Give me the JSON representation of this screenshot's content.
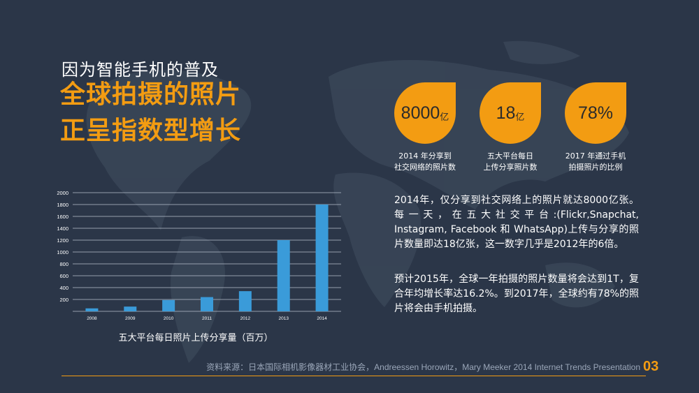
{
  "header": {
    "subtitle": "因为智能手机的普及",
    "headline_line1": "全球拍摄的照片",
    "headline_line2": "正呈指数型增长"
  },
  "stats": [
    {
      "value": "8000",
      "unit": "亿",
      "caption_line1": "2014 年分享到",
      "caption_line2": "社交网络的照片数"
    },
    {
      "value": "18",
      "unit": "亿",
      "caption_line1": "五大平台每日",
      "caption_line2": "上传分享照片数"
    },
    {
      "value": "78%",
      "unit": "",
      "caption_line1": "2017 年通过手机",
      "caption_line2": "拍摄照片的比例"
    }
  ],
  "paragraphs": {
    "p1": "2014年，仅分享到社交网络上的照片就达8000亿张。每一天，在五大社交平台:(Flickr,Snapchat, Instagram, Facebook 和 WhatsApp)上传与分享的照片数量即达18亿张，这一数字几乎是2012年的6倍。",
    "p2": "预计2015年，全球一年拍摄的照片数量将会达到1T，复合年均增长率达16.2%。到2017年，全球约有78%的照片将会由手机拍摄。"
  },
  "chart_data": {
    "type": "bar",
    "title": "五大平台每日照片上传分享量（百万）",
    "categories": [
      "2008",
      "2009",
      "2010",
      "2011",
      "2012",
      "2013",
      "2014"
    ],
    "values": [
      50,
      80,
      190,
      240,
      340,
      1200,
      1800
    ],
    "yticks": [
      "200",
      "400",
      "600",
      "800",
      "1000",
      "1200",
      "1400",
      "1600",
      "1800",
      "2000"
    ],
    "ylim": [
      0,
      2000
    ],
    "color": "#3a9bd9",
    "grid": true
  },
  "footer": {
    "source": "资料来源：日本国际相机影像器材工业协会，Andreessen Horowitz，Mary Meeker 2014 Internet Trends Presentation",
    "page_number": "03"
  },
  "colors": {
    "accent": "#f39c12",
    "background": "#2b3648",
    "bar": "#3a9bd9"
  }
}
